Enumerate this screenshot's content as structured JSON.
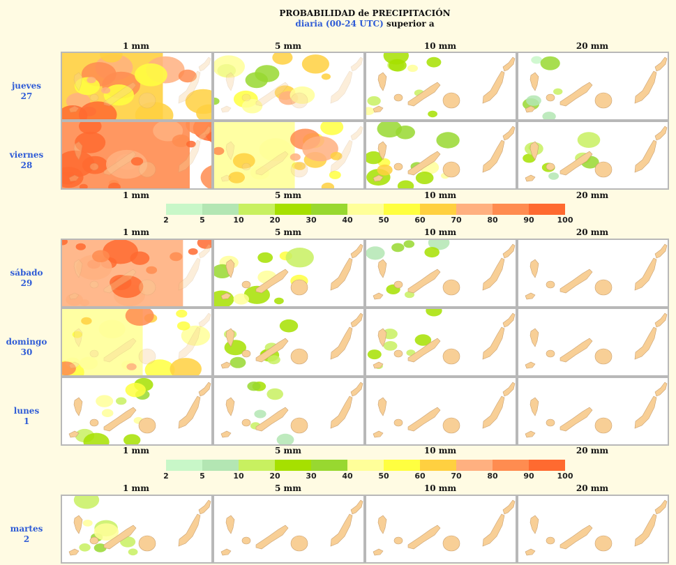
{
  "title": {
    "main": "PROBABILIDAD de PRECIPITACIÓN",
    "sub_period": "diaria (00-24 UTC)",
    "sub_suffix": " superior a"
  },
  "thresholds": [
    "1 mm",
    "5 mm",
    "10 mm",
    "20 mm"
  ],
  "days": [
    {
      "name": "jueves",
      "num": "27",
      "levels": [
        0.75,
        0.45,
        0.18,
        0.02
      ]
    },
    {
      "name": "viernes",
      "num": "28",
      "levels": [
        0.95,
        0.6,
        0.35,
        0.12
      ]
    },
    {
      "name": "sábado",
      "num": "29",
      "levels": [
        0.9,
        0.3,
        0.08,
        0.0
      ]
    },
    {
      "name": "domingo",
      "num": "30",
      "levels": [
        0.6,
        0.12,
        0.05,
        0.0
      ]
    },
    {
      "name": "lunes",
      "num": "1",
      "levels": [
        0.25,
        0.03,
        0.0,
        0.0
      ]
    },
    {
      "name": "martes",
      "num": "2",
      "levels": [
        0.2,
        0.0,
        0.0,
        0.0
      ]
    }
  ],
  "legend": {
    "colors": [
      "#c8f7c8",
      "#b3e6b3",
      "#c8f060",
      "#a6e000",
      "#98d830",
      "#ffff99",
      "#ffff40",
      "#ffd040",
      "#ffb080",
      "#ff8c50",
      "#ff6a30"
    ],
    "labels": [
      "2",
      "5",
      "10",
      "20",
      "30",
      "40",
      "50",
      "60",
      "70",
      "80",
      "90",
      "100"
    ]
  },
  "colors": {
    "background": "#fffbe3",
    "island": "#f8cf96",
    "label_blue": "#2f5cd6"
  }
}
